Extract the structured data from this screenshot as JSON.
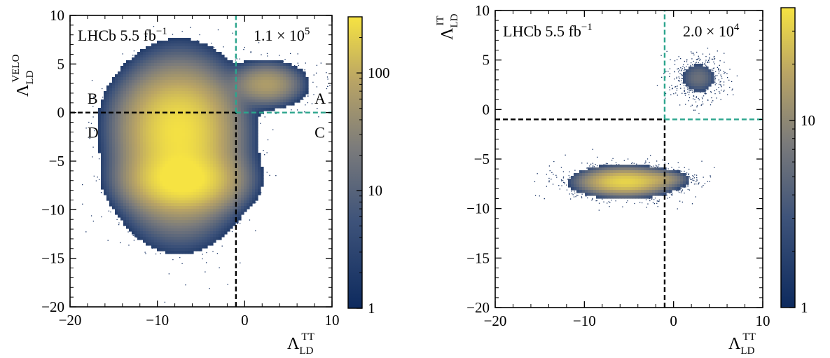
{
  "chart_data": [
    {
      "type": "heatmap",
      "panel": "left",
      "xlabel": "Λ",
      "xlabel_sub": "LD",
      "xlabel_sup": "TT",
      "ylabel": "Λ",
      "ylabel_sub": "LD",
      "ylabel_sup": "VELO",
      "xlim": [
        -20,
        10
      ],
      "ylim": [
        -20,
        10
      ],
      "xticks": [
        -20,
        -10,
        0,
        10
      ],
      "yticks": [
        -20,
        -15,
        -10,
        -5,
        0,
        5,
        10
      ],
      "xtick_labels": [
        "−20",
        "−10",
        "0",
        "10"
      ],
      "ytick_labels": [
        "−20",
        "−15",
        "−10",
        "−5",
        "0",
        "5",
        "10"
      ],
      "experiment_label": "LHCb 5.5 fb",
      "experiment_label_sup": "−1",
      "count_label": "1.1 × 10",
      "count_label_sup": "5",
      "colorbar": {
        "scale": "log",
        "range": [
          1,
          300
        ],
        "ticks": [
          1,
          10,
          100
        ],
        "tick_labels": [
          "1",
          "10",
          "100"
        ]
      },
      "cut_lines": [
        {
          "orientation": "vertical",
          "value": -1,
          "from": -20,
          "to": 0,
          "color": "#000000"
        },
        {
          "orientation": "horizontal",
          "value": 0,
          "from": -20,
          "to": -1,
          "color": "#000000"
        },
        {
          "orientation": "vertical",
          "value": -1,
          "from": 0,
          "to": 10,
          "color": "#2ca58d"
        },
        {
          "orientation": "horizontal",
          "value": 0,
          "from": -1,
          "to": 10,
          "color": "#2ca58d"
        }
      ],
      "region_labels": [
        {
          "text": "A",
          "x": 8,
          "y": 1.5
        },
        {
          "text": "B",
          "x": -18,
          "y": 1.5
        },
        {
          "text": "C",
          "x": 8,
          "y": -2
        },
        {
          "text": "D",
          "x": -18,
          "y": -2
        }
      ],
      "clusters": [
        {
          "cx": -7.5,
          "cy": -3.5,
          "sx": 2.9,
          "sy": 3.6,
          "peak": 230,
          "n": 3400
        },
        {
          "cx": -7.0,
          "cy": -7.0,
          "sx": 2.8,
          "sy": 1.4,
          "peak": 280,
          "n": 1500
        },
        {
          "cx": -7.8,
          "cy": -0.5,
          "sx": 3.0,
          "sy": 2.2,
          "peak": 90,
          "n": 1100
        },
        {
          "cx": 2.5,
          "cy": 2.9,
          "sx": 1.9,
          "sy": 1.0,
          "peak": 55,
          "n": 900
        }
      ]
    },
    {
      "type": "heatmap",
      "panel": "right",
      "xlabel": "Λ",
      "xlabel_sub": "LD",
      "xlabel_sup": "TT",
      "ylabel": "Λ",
      "ylabel_sub": "LD",
      "ylabel_sup": "IT",
      "xlim": [
        -20,
        10
      ],
      "ylim": [
        -20,
        10
      ],
      "xticks": [
        -20,
        -10,
        0,
        10
      ],
      "yticks": [
        -20,
        -15,
        -10,
        -5,
        0,
        5,
        10
      ],
      "xtick_labels": [
        "−20",
        "−10",
        "0",
        "10"
      ],
      "ytick_labels": [
        "−20",
        "−15",
        "−10",
        "−5",
        "0",
        "5",
        "10"
      ],
      "experiment_label": "LHCb 5.5 fb",
      "experiment_label_sup": "−1",
      "count_label": "2.0 × 10",
      "count_label_sup": "4",
      "colorbar": {
        "scale": "log",
        "range": [
          1,
          40
        ],
        "ticks": [
          1,
          10
        ],
        "tick_labels": [
          "1",
          "10"
        ]
      },
      "cut_lines": [
        {
          "orientation": "vertical",
          "value": -1,
          "from": -20,
          "to": -1,
          "color": "#000000"
        },
        {
          "orientation": "horizontal",
          "value": -1,
          "from": -20,
          "to": -1,
          "color": "#000000"
        },
        {
          "orientation": "vertical",
          "value": -1,
          "from": -1,
          "to": 10,
          "color": "#2ca58d"
        },
        {
          "orientation": "horizontal",
          "value": -1,
          "from": -1,
          "to": 10,
          "color": "#2ca58d"
        }
      ],
      "clusters": [
        {
          "cx": -5.5,
          "cy": -7.3,
          "sx": 2.7,
          "sy": 0.75,
          "peak": 32,
          "n": 1700
        },
        {
          "cx": -1.0,
          "cy": -7.0,
          "sx": 1.6,
          "sy": 0.45,
          "peak": 6,
          "n": 350
        },
        {
          "cx": 2.8,
          "cy": 3.2,
          "sx": 1.3,
          "sy": 1.0,
          "peak": 5,
          "n": 550
        }
      ]
    }
  ]
}
